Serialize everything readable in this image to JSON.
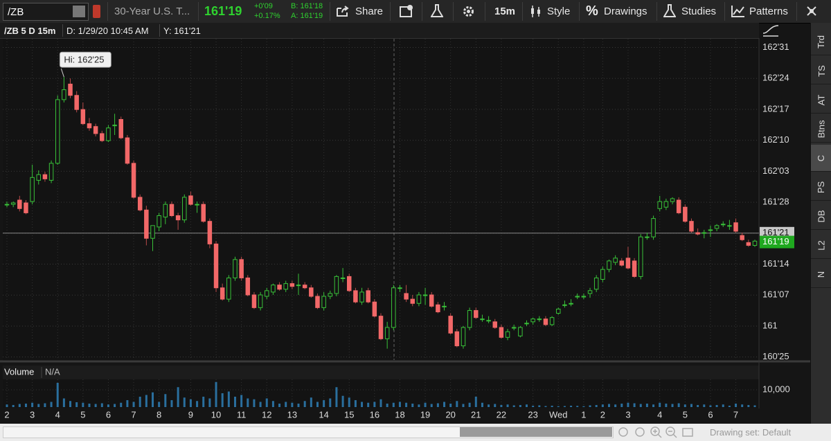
{
  "ui": {
    "toolbar": {
      "symbol": "/ZB",
      "description": "30-Year U.S. T...",
      "last": "161'19",
      "change": "+0'09",
      "change_pct": "+0.17%",
      "bid": "B: 161'18",
      "ask": "A: 161'19",
      "share": "Share",
      "interval": "15m",
      "style": "Style",
      "drawings": "Drawings",
      "studies": "Studies",
      "patterns": "Patterns"
    },
    "header": {
      "title": "/ZB 5 D 15m",
      "date": "D: 1/29/20 10:45 AM",
      "y_value": "Y: 161'21"
    },
    "side_tabs": [
      "Trd",
      "TS",
      "AT",
      "Btns",
      "C",
      "PS",
      "DB",
      "L2",
      "N"
    ],
    "footer": {
      "drawing_set": "Drawing set: Default"
    }
  },
  "chart_data": {
    "type": "candlestick",
    "categories": [
      "2",
      null,
      null,
      null,
      "3",
      null,
      null,
      null,
      "4",
      null,
      null,
      null,
      "5",
      null,
      null,
      null,
      "6",
      null,
      null,
      null,
      "7",
      null,
      null,
      null,
      "8",
      null,
      null,
      null,
      null,
      "9",
      null,
      null,
      null,
      "10",
      null,
      null,
      null,
      "11",
      null,
      null,
      null,
      "12",
      null,
      null,
      null,
      "13",
      null,
      null,
      null,
      null,
      "14",
      null,
      null,
      null,
      "15",
      null,
      null,
      null,
      "16",
      null,
      null,
      null,
      "18",
      null,
      null,
      null,
      "19",
      null,
      null,
      null,
      "20",
      null,
      null,
      null,
      "21",
      null,
      null,
      null,
      "22",
      null,
      null,
      null,
      null,
      "23",
      null,
      null,
      null,
      "Wed",
      null,
      null,
      null,
      "1",
      null,
      null,
      "2",
      null,
      null,
      null,
      "3",
      null,
      null,
      null,
      null,
      "4",
      null,
      null,
      null,
      "5",
      null,
      null,
      null,
      "6",
      null,
      null,
      null,
      "7",
      null,
      null,
      null
    ],
    "ohlc": [
      [
        161.86,
        161.88,
        161.84,
        161.86
      ],
      [
        161.86,
        161.88,
        161.84,
        161.87
      ],
      [
        161.89,
        161.92,
        161.81,
        161.83
      ],
      [
        161.87,
        161.89,
        161.79,
        161.8
      ],
      [
        161.88,
        162.14,
        161.86,
        162.05
      ],
      [
        162.03,
        162.1,
        162.0,
        162.07
      ],
      [
        162.07,
        162.09,
        162.02,
        162.04
      ],
      [
        162.03,
        162.17,
        162.01,
        162.15
      ],
      [
        162.15,
        162.63,
        162.14,
        162.6
      ],
      [
        162.6,
        162.76,
        162.58,
        162.67
      ],
      [
        162.71,
        162.75,
        162.61,
        162.63
      ],
      [
        162.63,
        162.66,
        162.51,
        162.53
      ],
      [
        162.53,
        162.58,
        162.42,
        162.43
      ],
      [
        162.43,
        162.47,
        162.38,
        162.4
      ],
      [
        162.41,
        162.43,
        162.34,
        162.36
      ],
      [
        162.36,
        162.38,
        162.3,
        162.31
      ],
      [
        162.31,
        162.42,
        162.3,
        162.4
      ],
      [
        162.42,
        162.5,
        162.35,
        162.42
      ],
      [
        162.46,
        162.48,
        162.32,
        162.33
      ],
      [
        162.33,
        162.35,
        162.14,
        162.15
      ],
      [
        162.15,
        162.17,
        161.9,
        161.91
      ],
      [
        161.91,
        161.93,
        161.81,
        161.82
      ],
      [
        161.82,
        161.85,
        161.57,
        161.62
      ],
      [
        161.62,
        161.71,
        161.53,
        161.71
      ],
      [
        161.7,
        161.8,
        161.67,
        161.78
      ],
      [
        161.77,
        161.88,
        161.72,
        161.86
      ],
      [
        161.86,
        161.88,
        161.77,
        161.78
      ],
      [
        161.78,
        161.8,
        161.68,
        161.75
      ],
      [
        161.75,
        161.93,
        161.73,
        161.91
      ],
      [
        161.92,
        161.95,
        161.85,
        161.86
      ],
      [
        161.86,
        161.88,
        161.8,
        161.86
      ],
      [
        161.86,
        161.88,
        161.73,
        161.74
      ],
      [
        161.74,
        161.76,
        161.55,
        161.58
      ],
      [
        161.58,
        161.6,
        161.24,
        161.27
      ],
      [
        161.27,
        161.3,
        161.18,
        161.19
      ],
      [
        161.19,
        161.36,
        161.17,
        161.34
      ],
      [
        161.34,
        161.49,
        161.32,
        161.47
      ],
      [
        161.47,
        161.49,
        161.32,
        161.34
      ],
      [
        161.34,
        161.36,
        161.21,
        161.22
      ],
      [
        161.22,
        161.24,
        161.12,
        161.13
      ],
      [
        161.13,
        161.24,
        161.11,
        161.22
      ],
      [
        161.21,
        161.27,
        161.19,
        161.25
      ],
      [
        161.24,
        161.3,
        161.22,
        161.29
      ],
      [
        161.29,
        161.31,
        161.25,
        161.26
      ],
      [
        161.26,
        161.32,
        161.24,
        161.3
      ],
      [
        161.3,
        161.32,
        161.26,
        161.28
      ],
      [
        161.29,
        161.37,
        161.22,
        161.29
      ],
      [
        161.29,
        161.31,
        161.26,
        161.27
      ],
      [
        161.27,
        161.29,
        161.2,
        161.21
      ],
      [
        161.21,
        161.23,
        161.12,
        161.13
      ],
      [
        161.13,
        161.24,
        161.11,
        161.21
      ],
      [
        161.21,
        161.25,
        161.19,
        161.23
      ],
      [
        161.23,
        161.36,
        161.21,
        161.35
      ],
      [
        161.34,
        161.41,
        161.31,
        161.34
      ],
      [
        161.35,
        161.37,
        161.24,
        161.25
      ],
      [
        161.25,
        161.27,
        161.16,
        161.17
      ],
      [
        161.17,
        161.27,
        161.15,
        161.24
      ],
      [
        161.25,
        161.27,
        161.16,
        161.17
      ],
      [
        161.17,
        161.19,
        161.06,
        161.07
      ],
      [
        161.07,
        161.09,
        160.9,
        160.91
      ],
      [
        160.91,
        161.03,
        160.84,
        160.99
      ],
      [
        160.99,
        161.29,
        160.97,
        161.27
      ],
      [
        161.27,
        161.29,
        161.24,
        161.27
      ],
      [
        161.23,
        161.29,
        161.17,
        161.19
      ],
      [
        161.19,
        161.22,
        161.14,
        161.16
      ],
      [
        161.16,
        161.24,
        161.14,
        161.22
      ],
      [
        161.22,
        161.27,
        161.15,
        161.22
      ],
      [
        161.22,
        161.24,
        161.13,
        161.14
      ],
      [
        161.15,
        161.17,
        161.09,
        161.1
      ],
      [
        161.14,
        161.17,
        161.11,
        161.14
      ],
      [
        161.07,
        161.09,
        160.94,
        160.95
      ],
      [
        160.96,
        160.98,
        160.85,
        160.86
      ],
      [
        160.86,
        161.0,
        160.84,
        160.99
      ],
      [
        160.99,
        161.13,
        160.97,
        161.11
      ],
      [
        161.11,
        161.13,
        161.05,
        161.06
      ],
      [
        161.05,
        161.08,
        161.03,
        161.05
      ],
      [
        161.04,
        161.07,
        161.02,
        161.04
      ],
      [
        161.03,
        161.05,
        160.98,
        160.99
      ],
      [
        160.99,
        161.01,
        160.91,
        160.92
      ],
      [
        160.92,
        160.98,
        160.9,
        160.96
      ],
      [
        160.99,
        161.01,
        160.97,
        160.99
      ],
      [
        160.93,
        161.0,
        160.92,
        160.99
      ],
      [
        161.02,
        161.04,
        161.0,
        161.02
      ],
      [
        161.03,
        161.06,
        161.01,
        161.05
      ],
      [
        161.05,
        161.07,
        161.03,
        161.05
      ],
      [
        161.05,
        161.07,
        161.0,
        161.01
      ],
      [
        161.01,
        161.07,
        161.0,
        161.06
      ],
      [
        161.09,
        161.13,
        161.08,
        161.12
      ],
      [
        161.15,
        161.18,
        161.13,
        161.15
      ],
      [
        161.16,
        161.19,
        161.14,
        161.16
      ],
      [
        161.21,
        161.23,
        161.19,
        161.21
      ],
      [
        161.21,
        161.23,
        161.19,
        161.21
      ],
      [
        161.23,
        161.27,
        161.2,
        161.25
      ],
      [
        161.26,
        161.36,
        161.24,
        161.34
      ],
      [
        161.33,
        161.42,
        161.31,
        161.4
      ],
      [
        161.4,
        161.47,
        161.38,
        161.46
      ],
      [
        161.45,
        161.5,
        161.43,
        161.48
      ],
      [
        161.46,
        161.48,
        161.42,
        161.43
      ],
      [
        161.48,
        161.56,
        161.4,
        161.41
      ],
      [
        161.46,
        161.48,
        161.34,
        161.35
      ],
      [
        161.35,
        161.65,
        161.33,
        161.63
      ],
      [
        161.63,
        161.66,
        161.61,
        161.63
      ],
      [
        161.63,
        161.78,
        161.61,
        161.76
      ],
      [
        161.83,
        161.92,
        161.81,
        161.88
      ],
      [
        161.84,
        161.9,
        161.82,
        161.88
      ],
      [
        161.88,
        161.91,
        161.86,
        161.9
      ],
      [
        161.89,
        161.91,
        161.79,
        161.8
      ],
      [
        161.84,
        161.86,
        161.73,
        161.74
      ],
      [
        161.74,
        161.76,
        161.66,
        161.67
      ],
      [
        161.66,
        161.69,
        161.64,
        161.65
      ],
      [
        161.66,
        161.68,
        161.62,
        161.66
      ],
      [
        161.68,
        161.71,
        161.63,
        161.68
      ],
      [
        161.69,
        161.72,
        161.67,
        161.71
      ],
      [
        161.72,
        161.74,
        161.7,
        161.72
      ],
      [
        161.71,
        161.75,
        161.68,
        161.71
      ],
      [
        161.73,
        161.76,
        161.66,
        161.67
      ],
      [
        161.64,
        161.66,
        161.6,
        161.61
      ],
      [
        161.59,
        161.61,
        161.56,
        161.57
      ],
      [
        161.57,
        161.61,
        161.56,
        161.6
      ]
    ],
    "colors": {
      "up": "#39c239",
      "down": "#f26868"
    },
    "ylim": [
      160.76,
      163.03
    ],
    "yticks": [
      {
        "value": 162.96875,
        "label": "162'31"
      },
      {
        "value": 162.75,
        "label": "162'24"
      },
      {
        "value": 162.53125,
        "label": "162'17"
      },
      {
        "value": 162.3125,
        "label": "162'10"
      },
      {
        "value": 162.09375,
        "label": "162'03"
      },
      {
        "value": 161.875,
        "label": "161'28"
      },
      {
        "value": 161.65625,
        "label": "161'21"
      },
      {
        "value": 161.4375,
        "label": "161'14"
      },
      {
        "value": 161.21875,
        "label": "161'07"
      },
      161,
      {
        "value": 160.78125,
        "label": "160'25"
      }
    ],
    "grid": true,
    "annotation": "Hi: 162'25",
    "last_price": {
      "value": 161.65625,
      "label": "161'21"
    },
    "current_price": {
      "value": 161.59375,
      "label": "161'19"
    },
    "volume": {
      "title": "Volume",
      "value_text": "N/A",
      "color": "#2a6f9e",
      "ylim": [
        0,
        16000
      ],
      "yticks": [
        {
          "value": 10000,
          "label": "10,000"
        }
      ],
      "values": [
        1500,
        1200,
        1800,
        2000,
        2500,
        1800,
        2200,
        3000,
        14000,
        5000,
        3500,
        2800,
        2500,
        2000,
        1800,
        2200,
        1500,
        1800,
        2500,
        4000,
        3000,
        6000,
        7000,
        8500,
        3000,
        7500,
        4000,
        11500,
        5500,
        4500,
        3500,
        6000,
        5000,
        14500,
        8000,
        9000,
        6000,
        7000,
        5000,
        4500,
        3000,
        5000,
        3500,
        2000,
        3000,
        2500,
        2000,
        3500,
        5500,
        3000,
        4000,
        5000,
        11500,
        6500,
        5500,
        4000,
        3000,
        2500,
        3000,
        4500,
        2000,
        2500,
        3000,
        2500,
        2000,
        1500,
        2500,
        1800,
        2200,
        3000,
        2000,
        3500,
        1800,
        2500,
        6000,
        2500,
        1500,
        1800,
        1200,
        1500,
        1000,
        1200,
        1500,
        800,
        1000,
        600,
        800,
        500,
        600,
        800,
        700,
        500,
        1000,
        1200,
        1500,
        1800,
        1500,
        2000,
        2500,
        2200,
        1800,
        2000,
        1500,
        2500,
        2000,
        1800,
        2200,
        1500,
        1800,
        1200,
        1500,
        1000,
        1200,
        1500,
        800,
        2000,
        1500,
        1200,
        1000
      ]
    }
  }
}
